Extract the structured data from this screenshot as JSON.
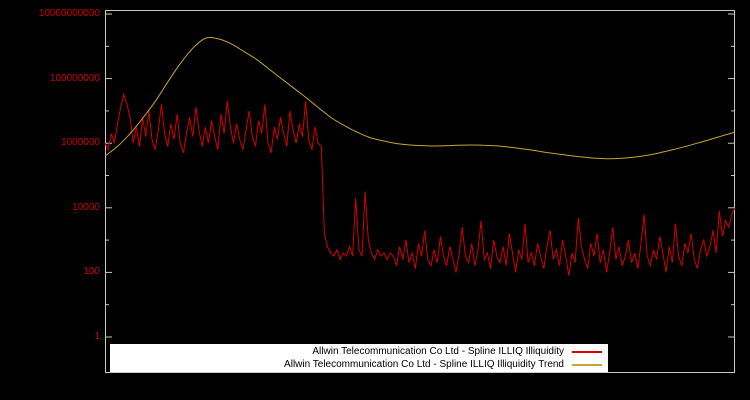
{
  "chart_data": {
    "type": "line",
    "title": "",
    "xlabel": "",
    "ylabel": "",
    "x_range_pct": [
      0,
      100
    ],
    "y_axis": {
      "scale": "log",
      "top_value": 10000000000.0,
      "tick_values": [
        10000000000.0,
        100000000.0,
        1000000.0,
        10000.0,
        100.0,
        1
      ],
      "tick_labels": [
        "10000000000",
        "100000000",
        "1000000",
        "10000",
        "100",
        "1"
      ]
    },
    "grid": false,
    "legend": {
      "position": "bottom-center",
      "background": "#ffffff",
      "entries": [
        {
          "label": "Allwin Telecommunication Co Ltd - Spline ILLIQ Illiquidity",
          "color": "#d40000"
        },
        {
          "label": "Allwin Telecommunication Co Ltd - Spline ILLIQ Illiquidity Trend",
          "color": "#c5a632"
        }
      ]
    },
    "colors": {
      "background": "#000000",
      "axis_text": "#cc0000",
      "border": "#c8c8c8",
      "series_illiq": "#d40000",
      "series_trend": "#c5a632"
    },
    "series": [
      {
        "name": "Allwin Telecommunication Co Ltd - Spline ILLIQ Illiquidity",
        "color": "#d40000",
        "values": [
          1000000,
          630000,
          2000000,
          1000000,
          4000000,
          13000000,
          32000000,
          16000000,
          6300000,
          1000000,
          3200000,
          790000,
          6300000,
          1600000,
          10000000,
          1300000,
          630000,
          2500000,
          16000000,
          2000000,
          790000,
          4000000,
          1300000,
          7900000,
          1000000,
          500000,
          2000000,
          6300000,
          1600000,
          13000000,
          2500000,
          790000,
          3200000,
          1000000,
          5000000,
          1600000,
          630000,
          7900000,
          2000000,
          20000000,
          3200000,
          1000000,
          4000000,
          1300000,
          630000,
          2500000,
          10000000,
          1600000,
          790000,
          5000000,
          2000000,
          16000000,
          1000000,
          500000,
          3200000,
          1300000,
          6300000,
          2000000,
          790000,
          10000000,
          2500000,
          1000000,
          4000000,
          1600000,
          20000000,
          1300000,
          630000,
          3200000,
          1000000,
          790000,
          1600,
          630,
          400,
          320,
          500,
          250,
          400,
          320,
          630,
          320,
          20000,
          500,
          320,
          32000,
          1000,
          400,
          250,
          500,
          320,
          400,
          250,
          400,
          320,
          160,
          630,
          250,
          1000,
          200,
          400,
          130,
          790,
          320,
          2000,
          250,
          160,
          500,
          200,
          1300,
          320,
          160,
          630,
          250,
          100,
          400,
          2500,
          320,
          200,
          790,
          160,
          500,
          4000,
          250,
          400,
          130,
          1000,
          320,
          200,
          630,
          160,
          1600,
          400,
          100,
          500,
          250,
          3200,
          200,
          400,
          160,
          790,
          320,
          130,
          630,
          2000,
          250,
          500,
          160,
          1000,
          320,
          79,
          400,
          200,
          5000,
          630,
          250,
          130,
          790,
          320,
          1600,
          200,
          500,
          100,
          400,
          2500,
          250,
          630,
          160,
          320,
          1000,
          200,
          400,
          130,
          790,
          6300,
          320,
          160,
          500,
          250,
          1300,
          400,
          100,
          630,
          200,
          3200,
          320,
          160,
          790,
          400,
          1600,
          250,
          130,
          500,
          1000,
          320,
          630,
          2000,
          400,
          7900,
          1300,
          4000,
          2500,
          6300,
          10000
        ]
      },
      {
        "name": "Allwin Telecommunication Co Ltd - Spline ILLIQ Illiquidity Trend",
        "color": "#c5a632",
        "smooth": true,
        "values": [
          400000,
          800000,
          2000000,
          6000000,
          20000000,
          80000000,
          300000000,
          900000000,
          1800000000,
          1700000000,
          1200000000,
          700000000,
          400000000,
          200000000,
          100000000,
          50000000,
          25000000,
          12000000,
          6000000,
          3500000,
          2200000,
          1500000,
          1200000,
          1000000,
          900000,
          850000,
          820000,
          830000,
          860000,
          880000,
          870000,
          830000,
          760000,
          680000,
          600000,
          520000,
          460000,
          410000,
          370000,
          340000,
          330000,
          340000,
          370000,
          420000,
          500000,
          620000,
          780000,
          1000000,
          1300000,
          1700000,
          2200000
        ]
      }
    ]
  }
}
